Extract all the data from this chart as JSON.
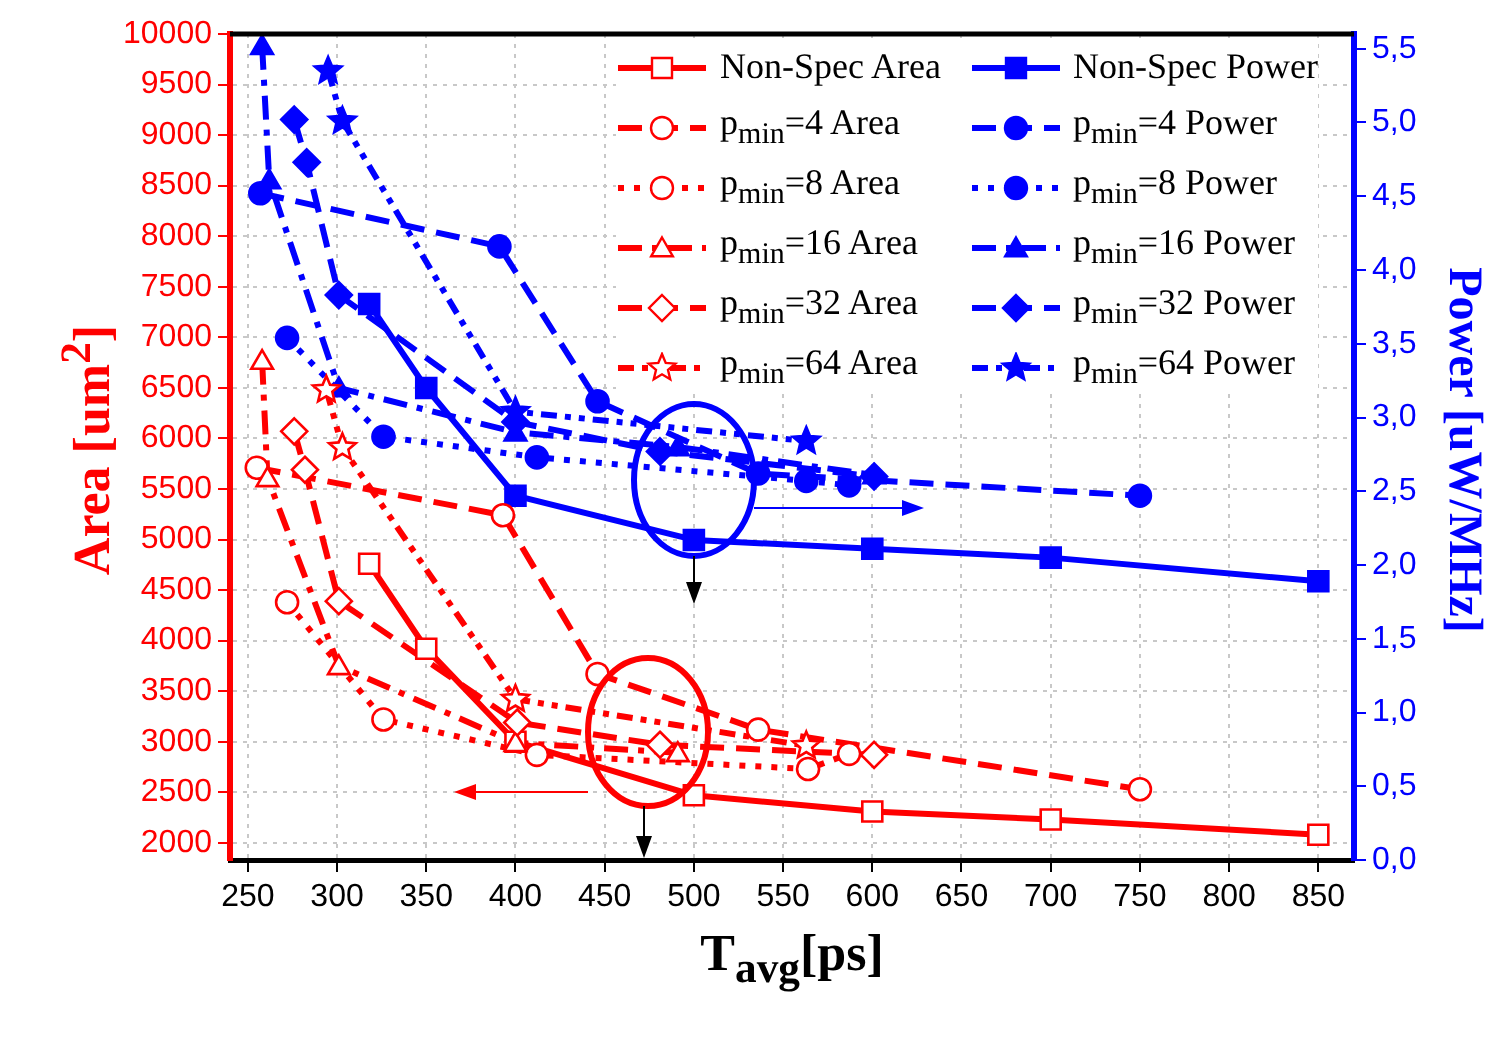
{
  "chart_data": {
    "type": "line",
    "xlabel": "T$_{avg}$[ps]",
    "ylabel": "Area [um$^{2}$]",
    "y2label": "Power [uW/MHz]",
    "xlim": [
      240,
      870
    ],
    "xticks": [
      250,
      300,
      350,
      400,
      450,
      500,
      550,
      600,
      650,
      700,
      750,
      800,
      850
    ],
    "ylim": [
      1830,
      10000
    ],
    "yticks": [
      2000,
      2500,
      3000,
      3500,
      4000,
      4500,
      5000,
      5500,
      6000,
      6500,
      7000,
      7500,
      8000,
      8500,
      9000,
      9500,
      10000
    ],
    "y2lim": [
      0,
      5.6
    ],
    "y2ticks": [
      {
        "value": 0,
        "label": "0,0"
      },
      {
        "value": 0.5,
        "label": "0,5"
      },
      {
        "value": 1,
        "label": "1,0"
      },
      {
        "value": 1.5,
        "label": "1,5"
      },
      {
        "value": 2,
        "label": "2,0"
      },
      {
        "value": 2.5,
        "label": "2,5"
      },
      {
        "value": 3,
        "label": "3,0"
      },
      {
        "value": 3.5,
        "label": "3,5"
      },
      {
        "value": 4,
        "label": "4,0"
      },
      {
        "value": 4.5,
        "label": "4,5"
      },
      {
        "value": 5,
        "label": "5,0"
      },
      {
        "value": 5.5,
        "label": "5,5"
      }
    ],
    "grid": true,
    "legend": "top right",
    "series": [
      {
        "name": "Non-Spec Area",
        "color": "#ff0000",
        "axis": "y",
        "marker": "square",
        "line_style": "solid",
        "x": [
          318,
          350,
          400,
          500,
          600,
          700,
          850
        ],
        "values": [
          4760,
          3920,
          3000,
          2470,
          2310,
          2230,
          2080
        ]
      },
      {
        "name": "Non-Spec Power",
        "color": "#0000ff",
        "axis": "y2",
        "marker": "square",
        "line_style": "solid",
        "x": [
          318,
          350,
          400,
          500,
          600,
          700,
          850
        ],
        "values": [
          3.77,
          3.2,
          2.47,
          2.17,
          2.11,
          2.05,
          1.89
        ]
      },
      {
        "name": "p$_{min}$=4 Area",
        "color": "#ff0000",
        "axis": "y",
        "marker": "circle",
        "line_style": "dashed",
        "x": [
          255,
          393,
          446,
          536,
          750
        ],
        "values": [
          5710,
          5240,
          3670,
          3120,
          2530
        ]
      },
      {
        "name": "p$_{min}$=4 Power",
        "color": "#0000ff",
        "axis": "y2",
        "marker": "circle",
        "line_style": "dashed",
        "x": [
          257,
          391,
          446,
          536,
          750
        ],
        "values": [
          4.52,
          4.16,
          3.11,
          2.62,
          2.47
        ]
      },
      {
        "name": "p$_{min}$=8 Area",
        "color": "#ff0000",
        "axis": "y",
        "marker": "circle",
        "line_style": "dotted",
        "x": [
          272,
          326,
          412,
          564,
          587
        ],
        "values": [
          4380,
          3220,
          2870,
          2730,
          2880
        ]
      },
      {
        "name": "p$_{min}$=8 Power",
        "color": "#0000ff",
        "axis": "y2",
        "marker": "circle",
        "line_style": "dotted",
        "x": [
          272,
          326,
          412,
          563,
          587
        ],
        "values": [
          3.54,
          2.87,
          2.73,
          2.57,
          2.54
        ]
      },
      {
        "name": "p$_{min}$=16 Area",
        "color": "#ff0000",
        "axis": "y",
        "marker": "triangle",
        "line_style": "dashdot",
        "x": [
          258,
          261,
          301,
          400,
          491
        ],
        "values": [
          6770,
          5610,
          3750,
          2990,
          2890
        ]
      },
      {
        "name": "p$_{min}$=16 Power",
        "color": "#0000ff",
        "axis": "y2",
        "marker": "triangle",
        "line_style": "dashdot",
        "x": [
          258,
          262,
          301,
          400,
          491,
          601
        ],
        "values": [
          5.52,
          4.61,
          3.2,
          2.9,
          2.8,
          2.61
        ]
      },
      {
        "name": "p$_{min}$=32 Area",
        "color": "#ff0000",
        "axis": "y",
        "marker": "diamond",
        "line_style": "dashed",
        "x": [
          276,
          282,
          301,
          401,
          481,
          601
        ],
        "values": [
          6070,
          5690,
          4390,
          3190,
          2970,
          2870
        ]
      },
      {
        "name": "p$_{min}$=32 Power",
        "color": "#0000ff",
        "axis": "y2",
        "marker": "diamond",
        "line_style": "dashed",
        "x": [
          276,
          283,
          301,
          400,
          481,
          601
        ],
        "values": [
          5.02,
          4.73,
          3.83,
          2.97,
          2.77,
          2.6
        ]
      },
      {
        "name": "p$_{min}$=64 Area",
        "color": "#ff0000",
        "axis": "y",
        "marker": "star",
        "line_style": "dashdotdot",
        "x": [
          294,
          303,
          400,
          563
        ],
        "values": [
          6480,
          5910,
          3420,
          2960
        ]
      },
      {
        "name": "p$_{min}$=64 Power",
        "color": "#0000ff",
        "axis": "y2",
        "marker": "star",
        "line_style": "dashdotdot",
        "x": [
          295,
          303,
          400,
          563
        ],
        "values": [
          5.35,
          5.01,
          3.04,
          2.84
        ]
      }
    ]
  }
}
